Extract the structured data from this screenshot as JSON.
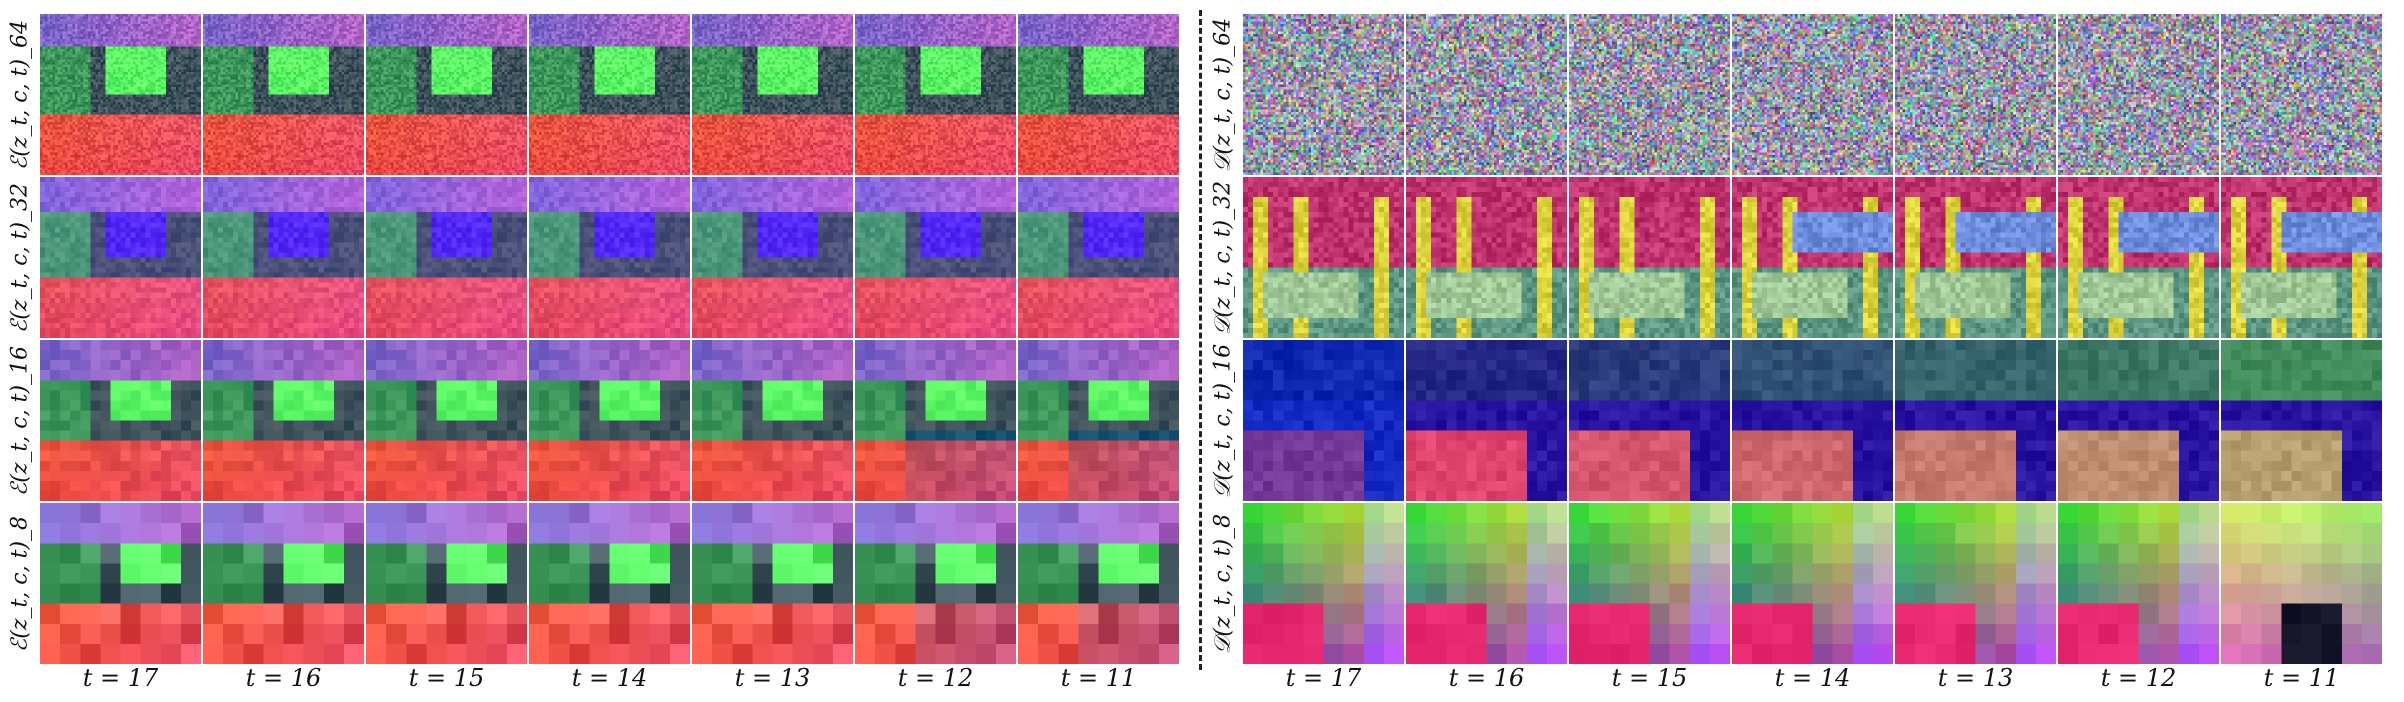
{
  "figure": {
    "left_rows": [
      {
        "label": "ℰ(z_t, c, t)_64",
        "res": 64
      },
      {
        "label": "ℰ(z_t, c, t)_32",
        "res": 32
      },
      {
        "label": "ℰ(z_t, c, t)_16",
        "res": 16
      },
      {
        "label": "ℰ(z_t, c, t)_8",
        "res": 8
      }
    ],
    "right_rows": [
      {
        "label": "𝒟(z_t, c, t)_64",
        "res": 64
      },
      {
        "label": "𝒟(z_t, c, t)_32",
        "res": 32
      },
      {
        "label": "𝒟(z_t, c, t)_16",
        "res": 16
      },
      {
        "label": "𝒟(z_t, c, t)_8",
        "res": 8
      }
    ],
    "timesteps": [
      "t = 17",
      "t = 16",
      "t = 15",
      "t = 14",
      "t = 13",
      "t = 12",
      "t = 11"
    ],
    "colors": {
      "background": "#ffffff",
      "divider": "#222222",
      "encoder_green": "#3cff5a",
      "encoder_red": "#e0503a",
      "encoder_blue": "#4030ff",
      "decoder_noise": "#8a8aa0",
      "decoder_pink": "#c0306a",
      "decoder_yellow": "#e6d24a"
    }
  }
}
